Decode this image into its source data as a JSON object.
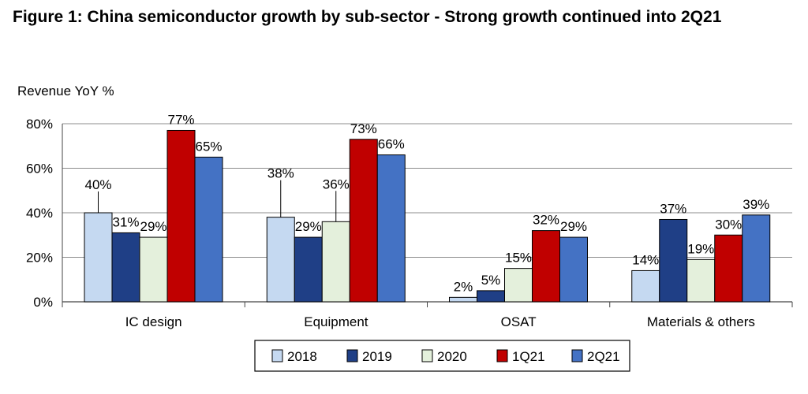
{
  "title": "Figure 1: China semiconductor growth by sub-sector - Strong growth continued into 2Q21",
  "chart_data": {
    "type": "bar",
    "ylabel": "Revenue YoY %",
    "xlabel": "",
    "ylim": [
      0,
      80
    ],
    "yticks": [
      0,
      20,
      40,
      60,
      80
    ],
    "ytick_labels": [
      "0%",
      "20%",
      "40%",
      "60%",
      "80%"
    ],
    "grid": true,
    "legend_position": "bottom",
    "categories": [
      "IC design",
      "Equipment",
      "OSAT",
      "Materials & others"
    ],
    "series": [
      {
        "name": "2018",
        "color": "#c5d9f1",
        "values": [
          40,
          38,
          2,
          14
        ],
        "labels": [
          "40%",
          "38%",
          "2%",
          "14%"
        ]
      },
      {
        "name": "2019",
        "color": "#1f3f86",
        "values": [
          31,
          29,
          5,
          37
        ],
        "labels": [
          "31%",
          "29%",
          "5%",
          "37%"
        ]
      },
      {
        "name": "2020",
        "color": "#e4f0dc",
        "values": [
          29,
          36,
          15,
          19
        ],
        "labels": [
          "29%",
          "36%",
          "15%",
          "19%"
        ]
      },
      {
        "name": "1Q21",
        "color": "#c00000",
        "values": [
          77,
          73,
          32,
          30
        ],
        "labels": [
          "77%",
          "73%",
          "32%",
          "30%"
        ]
      },
      {
        "name": "2Q21",
        "color": "#4472c4",
        "values": [
          65,
          66,
          29,
          39
        ],
        "labels": [
          "65%",
          "66%",
          "29%",
          "39%"
        ]
      }
    ]
  }
}
